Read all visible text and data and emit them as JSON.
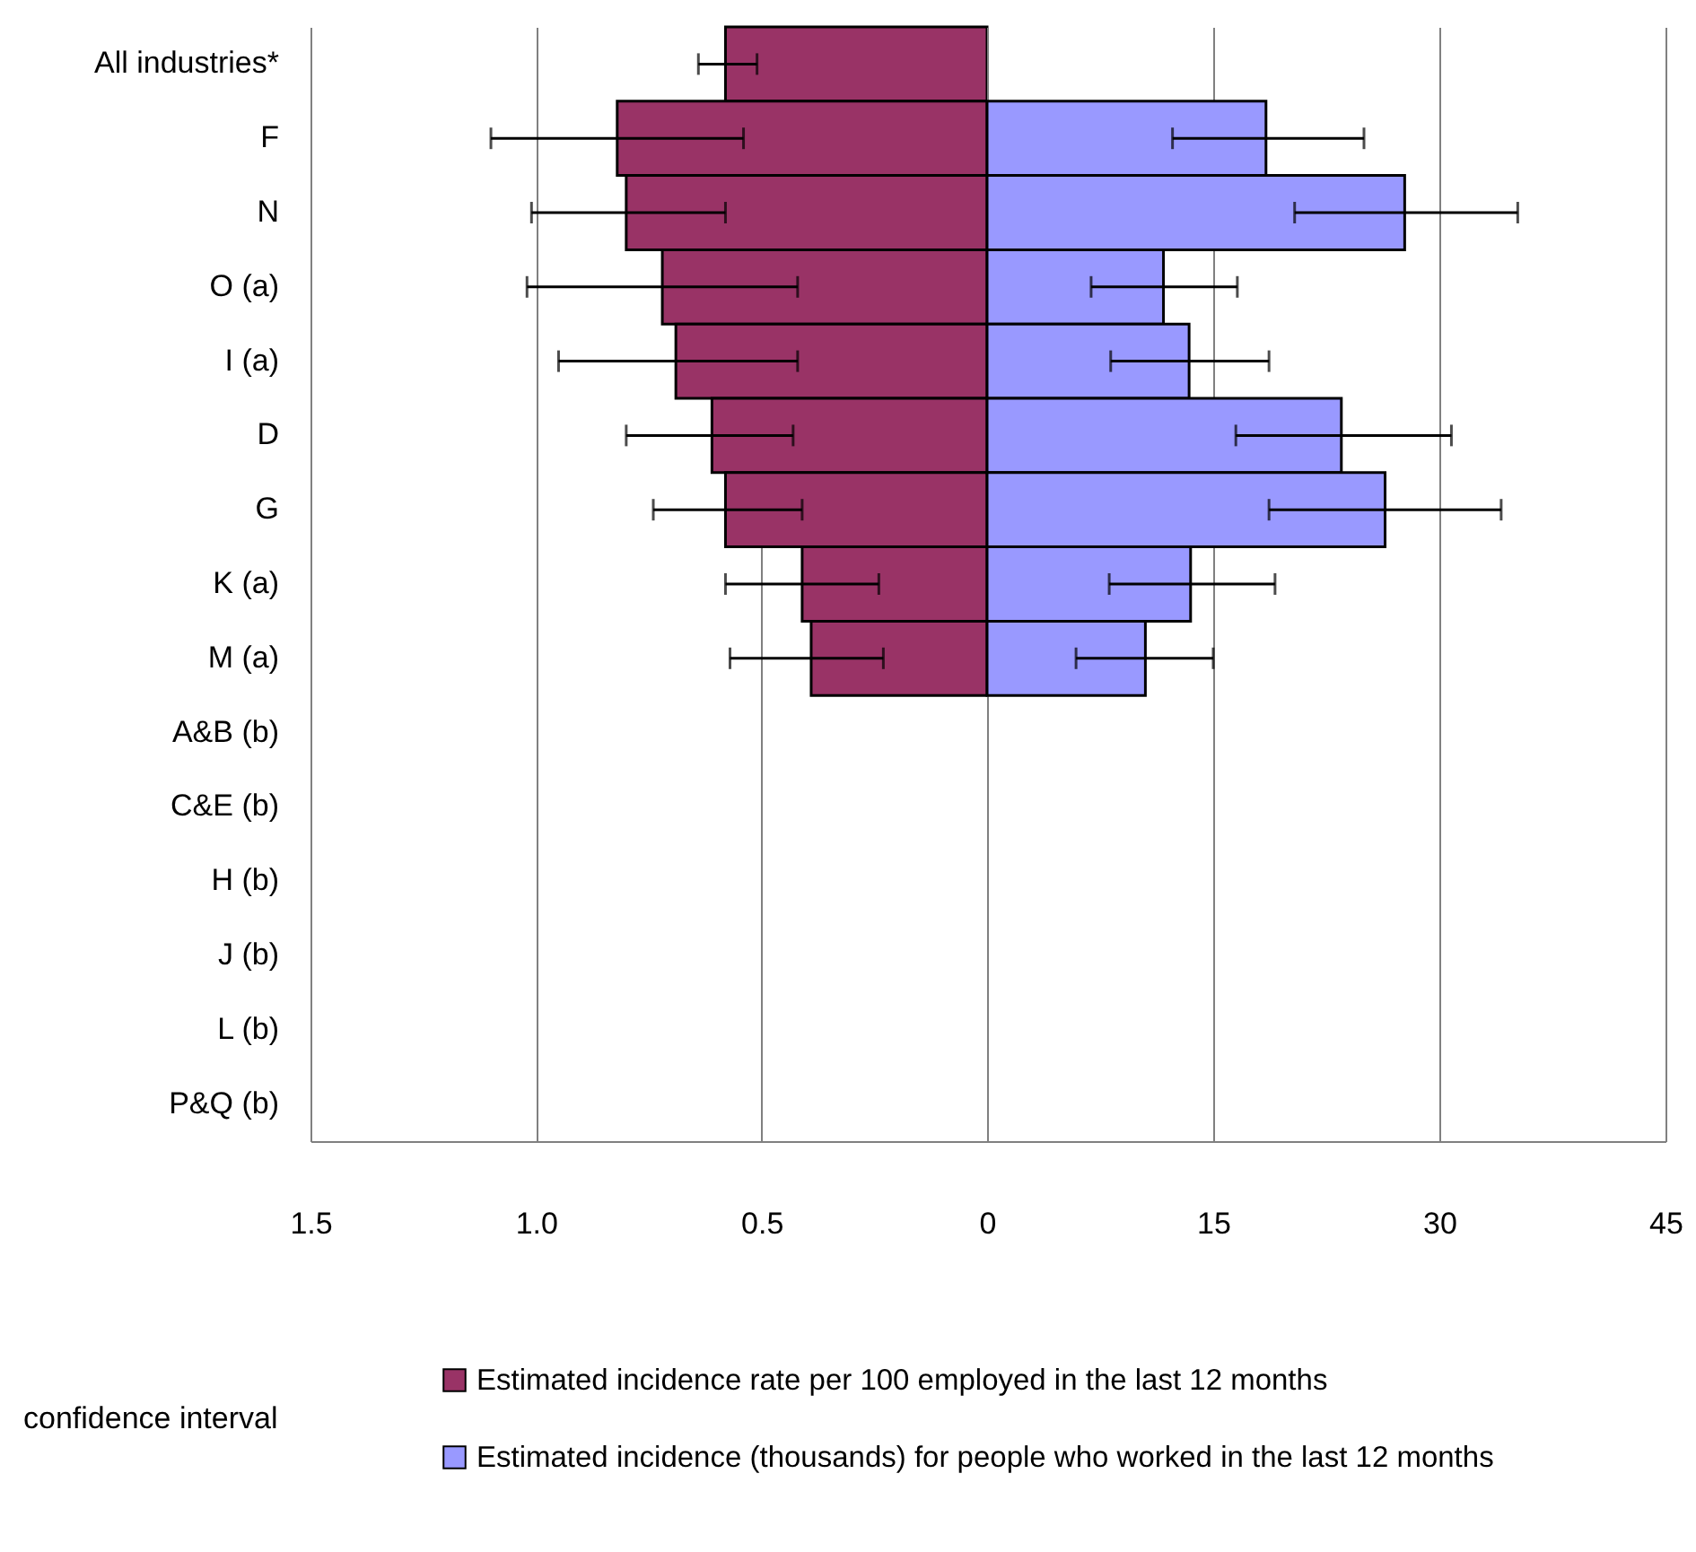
{
  "chart_data": [
    {
      "type": "bar",
      "orientation": "horizontal",
      "categories": [
        "All industries*",
        "F",
        "N",
        "O (a)",
        "I (a)",
        "D",
        "G",
        "K (a)",
        "M (a)",
        "A&B (b)",
        "C&E (b)",
        "H (b)",
        "J (b)",
        "L (b)",
        "P&Q (b)"
      ],
      "series": [
        {
          "name": "Estimated incidence rate per 100 employed in the last 12 months",
          "color": "#993366",
          "values": [
            0.58,
            0.82,
            0.8,
            0.72,
            0.69,
            0.61,
            0.58,
            0.41,
            0.39,
            null,
            null,
            null,
            null,
            null,
            null
          ],
          "errors": [
            [
              0.51,
              0.64
            ],
            [
              0.54,
              1.1
            ],
            [
              0.58,
              1.01
            ],
            [
              0.42,
              1.02
            ],
            [
              0.42,
              0.95
            ],
            [
              0.43,
              0.8
            ],
            [
              0.41,
              0.74
            ],
            [
              0.24,
              0.58
            ],
            [
              0.23,
              0.57
            ],
            null,
            null,
            null,
            null,
            null,
            null
          ]
        }
      ],
      "xlim": [
        1.5,
        0
      ],
      "xticks": [
        1.5,
        {
          "value": 1,
          "label": "1.0"
        },
        0.5,
        0
      ],
      "grid": "x",
      "legend": "bottom",
      "annotations": [
        "confidence interval"
      ]
    },
    {
      "type": "bar",
      "orientation": "horizontal",
      "categories": [
        null,
        null,
        null,
        null,
        null,
        null,
        null,
        null,
        null,
        null,
        null,
        null,
        null,
        null,
        null
      ],
      "series": [
        {
          "name": "Estimated incidence (thousands) for people who worked in the last 12 months",
          "color": "#9999ff",
          "values": [
            null,
            18.5,
            27.7,
            11.7,
            13.4,
            23.5,
            26.4,
            13.5,
            10.5,
            null,
            null,
            null,
            null,
            null,
            null
          ],
          "errors": [
            null,
            [
              12.3,
              25.0
            ],
            [
              20.4,
              35.2
            ],
            [
              6.9,
              16.6
            ],
            [
              8.2,
              18.7
            ],
            [
              16.5,
              30.8
            ],
            [
              18.7,
              34.1
            ],
            [
              8.1,
              19.1
            ],
            [
              5.9,
              15.0
            ],
            null,
            null,
            null,
            null,
            null,
            null
          ]
        }
      ],
      "xlim": [
        0,
        45
      ],
      "xticks": [
        {
          "value": 0,
          "label": null
        },
        15,
        30,
        45
      ],
      "grid": "x",
      "legend": "bottom",
      "tick_labels": "x"
    }
  ]
}
